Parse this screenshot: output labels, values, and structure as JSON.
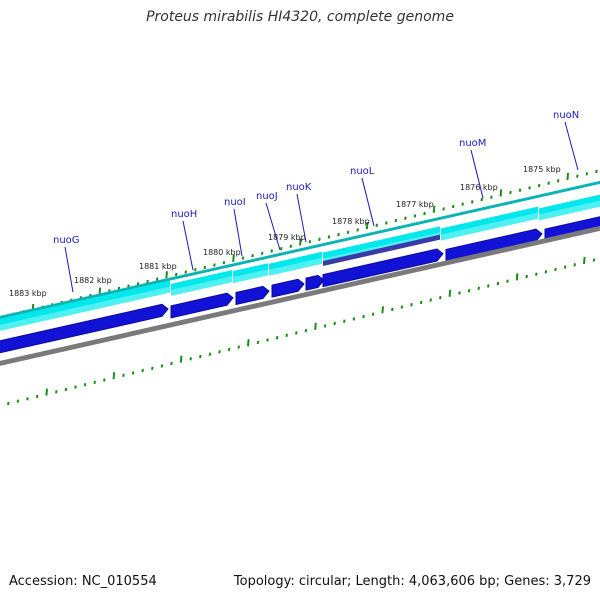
{
  "title": "Proteus mirabilis HI4320, complete genome",
  "accession_text": "Accession: NC_010554",
  "summary_text": "Topology: circular; Length: 4,063,606 bp; Genes: 3,729",
  "colors": {
    "forward_feature": "#00e8ec",
    "forward_feature_light": "#8ff6f8",
    "forward_track": "#0ab4b4",
    "reverse_feature": "#1212d6",
    "reverse_feature_dark": "#0a0a9a",
    "overlap_feature": "#3a3aa8",
    "backbone": "#7a7a7a",
    "tick": "#1a8c1a",
    "label_line": "#1a1ab8"
  },
  "kbp_ticks": [
    {
      "text": "1883 kbp"
    },
    {
      "text": "1882 kbp"
    },
    {
      "text": "1881 kbp"
    },
    {
      "text": "1880 kbp"
    },
    {
      "text": "1879 kbp"
    },
    {
      "text": "1878 kbp"
    },
    {
      "text": "1877 kbp"
    },
    {
      "text": "1876 kbp"
    },
    {
      "text": "1875 kbp"
    }
  ],
  "genes": [
    {
      "name": "nuoG"
    },
    {
      "name": "nuoH"
    },
    {
      "name": "nuoI"
    },
    {
      "name": "nuoJ"
    },
    {
      "name": "nuoK"
    },
    {
      "name": "nuoL"
    },
    {
      "name": "nuoM"
    },
    {
      "name": "nuoN"
    }
  ]
}
